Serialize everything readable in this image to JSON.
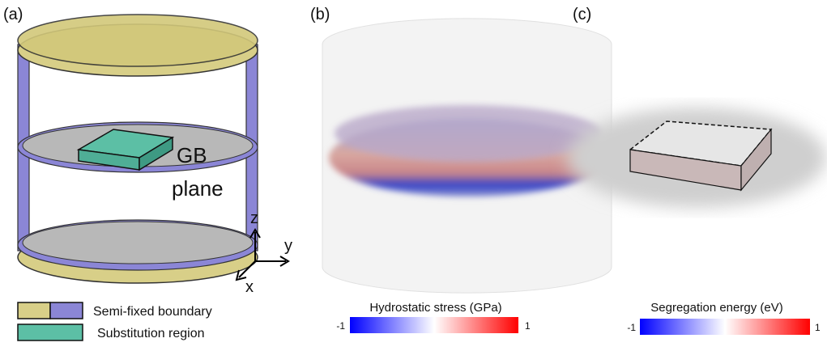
{
  "panels": [
    {
      "label": "(a)",
      "annotations": [
        "GB",
        "plane"
      ],
      "axes": [
        "z",
        "y",
        "x"
      ],
      "legend": [
        {
          "label": "Semi-fixed boundary"
        },
        {
          "label": "Substitution region"
        }
      ]
    },
    {
      "label": "(b)",
      "colorbar": {
        "title": "Hydrostatic stress (GPa)",
        "min": -1,
        "max": 1
      }
    },
    {
      "label": "(c)",
      "colorbar": {
        "title": "Segregation energy (eV)",
        "min": -1,
        "max": 1
      }
    }
  ]
}
